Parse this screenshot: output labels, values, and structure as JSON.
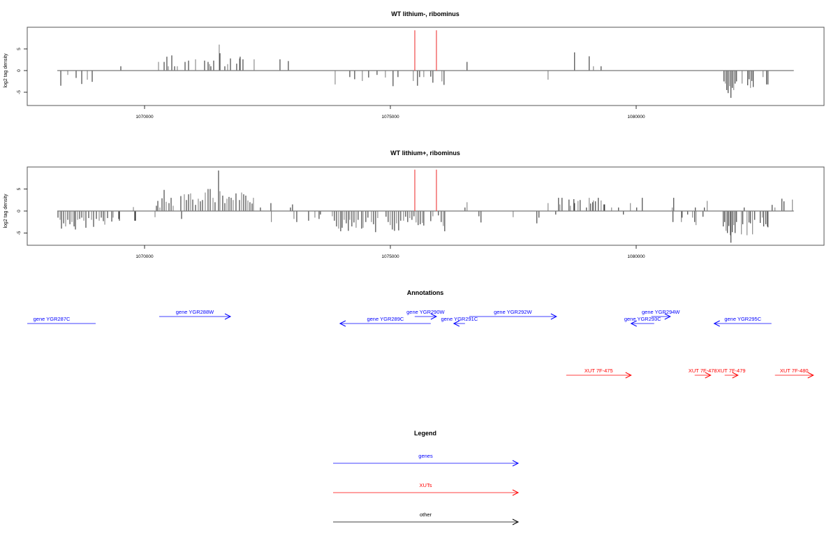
{
  "chart_data": [
    {
      "type": "bar",
      "title": "WT lithium-, ribominus",
      "xlabel": "",
      "ylabel": "log2 tag density",
      "xlim": [
        1067614,
        1083817
      ],
      "ylim": [
        -8,
        10
      ],
      "xticks": [
        1070000,
        1075000,
        1080000
      ],
      "xtick_labels": [
        "1070000",
        "1075000",
        "1080000"
      ],
      "yticks": [
        -5,
        0,
        5
      ],
      "ytick_labels": [
        "-5",
        "0",
        "5"
      ],
      "baseline": [
        1068225,
        1083206
      ],
      "highlight_lines": {
        "color": "#f04848",
        "x": [
          1075497,
          1075937
        ],
        "value": 9.3
      },
      "bars": [
        [
          1068296,
          -3.5
        ],
        [
          1068438,
          -1
        ],
        [
          1068608,
          -1.7
        ],
        [
          1068722,
          -3.1
        ],
        [
          1068836,
          -2.1
        ],
        [
          1068935,
          -2.6
        ],
        [
          1069517,
          1
        ],
        [
          1070284,
          2
        ],
        [
          1070398,
          2
        ],
        [
          1070454,
          3.2
        ],
        [
          1070483,
          1
        ],
        [
          1070554,
          3.5
        ],
        [
          1070611,
          1
        ],
        [
          1070667,
          1
        ],
        [
          1070824,
          2
        ],
        [
          1070895,
          2.3
        ],
        [
          1071037,
          2.6
        ],
        [
          1071221,
          2.3
        ],
        [
          1071292,
          2
        ],
        [
          1071321,
          1.5
        ],
        [
          1071349,
          1
        ],
        [
          1071406,
          2.3
        ],
        [
          1071519,
          6
        ],
        [
          1071534,
          4
        ],
        [
          1071633,
          1
        ],
        [
          1071690,
          1.5
        ],
        [
          1071747,
          2.8
        ],
        [
          1071874,
          1.6
        ],
        [
          1071931,
          2.8
        ],
        [
          1071945,
          3.2
        ],
        [
          1072002,
          2.6
        ],
        [
          1072229,
          2.6
        ],
        [
          1072755,
          2.6
        ],
        [
          1072925,
          2.2
        ],
        [
          1073877,
          -3.2
        ],
        [
          1074175,
          -1.5
        ],
        [
          1074274,
          -2
        ],
        [
          1074430,
          -2.4
        ],
        [
          1074558,
          -1.6
        ],
        [
          1074729,
          -1
        ],
        [
          1074899,
          -1.6
        ],
        [
          1075055,
          -3.6
        ],
        [
          1075155,
          -1.5
        ],
        [
          1075467,
          -2.4
        ],
        [
          1075552,
          -3.5
        ],
        [
          1075595,
          -1.5
        ],
        [
          1075680,
          -1.5
        ],
        [
          1075822,
          -1.4
        ],
        [
          1075865,
          -2.8
        ],
        [
          1076049,
          -2.5
        ],
        [
          1076092,
          -3.3
        ],
        [
          1076560,
          2
        ],
        [
          1078208,
          -2.1
        ],
        [
          1078747,
          4.2
        ],
        [
          1079045,
          3.3
        ],
        [
          1079131,
          1
        ],
        [
          1079287,
          1
        ],
        [
          1081786,
          -2.5
        ],
        [
          1081814,
          -3
        ],
        [
          1081843,
          -4.5
        ],
        [
          1081871,
          -5.2
        ],
        [
          1081900,
          -3.6
        ],
        [
          1081928,
          -6.3
        ],
        [
          1081956,
          -4
        ],
        [
          1081985,
          -4.5
        ],
        [
          1082013,
          -3
        ],
        [
          1082042,
          -2.5
        ],
        [
          1082155,
          -3
        ],
        [
          1082269,
          -3.4
        ],
        [
          1082297,
          -2
        ],
        [
          1082326,
          -4
        ],
        [
          1082354,
          -2.4
        ],
        [
          1082382,
          -3.8
        ],
        [
          1082581,
          -1.5
        ],
        [
          1082652,
          -3.2
        ],
        [
          1082681,
          -3.2
        ]
      ]
    },
    {
      "type": "bar",
      "title": "WT lithium+, ribominus",
      "xlabel": "",
      "ylabel": "log2 tag density",
      "xlim": [
        1067614,
        1083817
      ],
      "ylim": [
        -8,
        10
      ],
      "xticks": [
        1070000,
        1075000,
        1080000
      ],
      "xtick_labels": [
        "1070000",
        "1075000",
        "1080000"
      ],
      "yticks": [
        -5,
        0,
        5
      ],
      "ytick_labels": [
        "-5",
        "0",
        "5"
      ],
      "baseline": [
        1068225,
        1083206
      ],
      "highlight_lines": {
        "color": "#f04848",
        "x": [
          1075497,
          1075937
        ],
        "value": 9.4
      },
      "bars": [
        [
          1068239,
          -1.5
        ],
        [
          1068282,
          -2
        ],
        [
          1068310,
          -4
        ],
        [
          1068353,
          -2.8
        ],
        [
          1068395,
          -3.5
        ],
        [
          1068438,
          -2
        ],
        [
          1068481,
          -3
        ],
        [
          1068523,
          -2.5
        ],
        [
          1068566,
          -3.5
        ],
        [
          1068594,
          -4.2
        ],
        [
          1068637,
          -2
        ],
        [
          1068679,
          -1.8
        ],
        [
          1068722,
          -1.5
        ],
        [
          1068765,
          -2.2
        ],
        [
          1068807,
          -3.8
        ],
        [
          1068864,
          -1.6
        ],
        [
          1068921,
          -2
        ],
        [
          1068963,
          -3.6
        ],
        [
          1069020,
          -1.8
        ],
        [
          1069077,
          -2.2
        ],
        [
          1069120,
          -1.5
        ],
        [
          1069162,
          -2.3
        ],
        [
          1069191,
          -3.1
        ],
        [
          1069247,
          -1.6
        ],
        [
          1069333,
          -2.4
        ],
        [
          1069361,
          -1.5
        ],
        [
          1069475,
          -1.8
        ],
        [
          1069489,
          -2.2
        ],
        [
          1069773,
          0.9
        ],
        [
          1069801,
          -2.2
        ],
        [
          1069815,
          -2.2
        ],
        [
          1070213,
          -1.4
        ],
        [
          1070241,
          1.2
        ],
        [
          1070270,
          2.3
        ],
        [
          1070312,
          0.8
        ],
        [
          1070355,
          2.9
        ],
        [
          1070398,
          4.8
        ],
        [
          1070440,
          2.1
        ],
        [
          1070497,
          1.8
        ],
        [
          1070540,
          3
        ],
        [
          1070582,
          1.2
        ],
        [
          1070738,
          3.4
        ],
        [
          1070753,
          -1.8
        ],
        [
          1070809,
          3.8
        ],
        [
          1070852,
          2.5
        ],
        [
          1070895,
          3.8
        ],
        [
          1070937,
          4
        ],
        [
          1070980,
          2.6
        ],
        [
          1071037,
          1.4
        ],
        [
          1071093,
          2.8
        ],
        [
          1071136,
          2.2
        ],
        [
          1071179,
          2.5
        ],
        [
          1071235,
          4.2
        ],
        [
          1071292,
          5
        ],
        [
          1071335,
          5
        ],
        [
          1071392,
          3
        ],
        [
          1071434,
          2
        ],
        [
          1071505,
          9.2
        ],
        [
          1071534,
          4.5
        ],
        [
          1071590,
          3.5
        ],
        [
          1071633,
          1.8
        ],
        [
          1071676,
          2.8
        ],
        [
          1071718,
          3.2
        ],
        [
          1071761,
          3
        ],
        [
          1071803,
          2.5
        ],
        [
          1071860,
          4
        ],
        [
          1071931,
          2.5
        ],
        [
          1071974,
          4.2
        ],
        [
          1072016,
          3.8
        ],
        [
          1072059,
          3.5
        ],
        [
          1072102,
          2.4
        ],
        [
          1072144,
          2
        ],
        [
          1072187,
          1.7
        ],
        [
          1072215,
          3
        ],
        [
          1072357,
          0.8
        ],
        [
          1072570,
          1.8
        ],
        [
          1072580,
          -2.5
        ],
        [
          1072968,
          0.8
        ],
        [
          1073010,
          1.5
        ],
        [
          1073039,
          -1.8
        ],
        [
          1073096,
          -2.5
        ],
        [
          1073337,
          -2.2
        ],
        [
          1073465,
          -1.5
        ],
        [
          1073550,
          -1.8
        ],
        [
          1073578,
          -0.8
        ],
        [
          1073820,
          -1.2
        ],
        [
          1073862,
          -2.2
        ],
        [
          1073905,
          -3.5
        ],
        [
          1073948,
          -4
        ],
        [
          1073990,
          -4.6
        ],
        [
          1074019,
          -3.8
        ],
        [
          1074061,
          -2
        ],
        [
          1074104,
          -2.8
        ],
        [
          1074146,
          -4.5
        ],
        [
          1074175,
          -2
        ],
        [
          1074217,
          -3.5
        ],
        [
          1074260,
          -2.6
        ],
        [
          1074303,
          -3.8
        ],
        [
          1074345,
          -2
        ],
        [
          1074416,
          -4
        ],
        [
          1074445,
          -3.8
        ],
        [
          1074501,
          -2.5
        ],
        [
          1074544,
          -1.5
        ],
        [
          1074615,
          -2.5
        ],
        [
          1074658,
          -3
        ],
        [
          1074700,
          -4.8
        ],
        [
          1074743,
          -1.6
        ],
        [
          1074913,
          -1.3
        ],
        [
          1074956,
          -2.5
        ],
        [
          1074998,
          -3.2
        ],
        [
          1075041,
          -4.2
        ],
        [
          1075084,
          -4.5
        ],
        [
          1075126,
          -2.8
        ],
        [
          1075169,
          -4.4
        ],
        [
          1075211,
          -2.2
        ],
        [
          1075268,
          -2.2
        ],
        [
          1075311,
          -1.3
        ],
        [
          1075353,
          -2.5
        ],
        [
          1075396,
          -1.6
        ],
        [
          1075439,
          -2
        ],
        [
          1075481,
          -1.2
        ],
        [
          1075524,
          -2.6
        ],
        [
          1075566,
          -3.2
        ],
        [
          1075609,
          -3
        ],
        [
          1075652,
          -2.7
        ],
        [
          1075680,
          -3.3
        ],
        [
          1075822,
          -2.3
        ],
        [
          1075865,
          -1.2
        ],
        [
          1075978,
          -1
        ],
        [
          1076035,
          -2.5
        ],
        [
          1076078,
          -3.4
        ],
        [
          1076106,
          -4.6
        ],
        [
          1076518,
          0.8
        ],
        [
          1076560,
          2
        ],
        [
          1076802,
          -1.2
        ],
        [
          1076844,
          -2.6
        ],
        [
          1077498,
          -1.4
        ],
        [
          1077980,
          -2.8
        ],
        [
          1078023,
          -1.5
        ],
        [
          1078208,
          1.8
        ],
        [
          1078364,
          -0.8
        ],
        [
          1078421,
          3
        ],
        [
          1078449,
          1.5
        ],
        [
          1078492,
          3
        ],
        [
          1078634,
          2.6
        ],
        [
          1078662,
          1.2
        ],
        [
          1078733,
          2.7
        ],
        [
          1078747,
          1.8
        ],
        [
          1078818,
          2.3
        ],
        [
          1078861,
          2.5
        ],
        [
          1078989,
          0.8
        ],
        [
          1079045,
          3
        ],
        [
          1079074,
          1.7
        ],
        [
          1079116,
          2
        ],
        [
          1079131,
          2.4
        ],
        [
          1079173,
          2.2
        ],
        [
          1079230,
          3
        ],
        [
          1079287,
          2.4
        ],
        [
          1079344,
          1.5
        ],
        [
          1079358,
          1.5
        ],
        [
          1079500,
          0.8
        ],
        [
          1079642,
          0.8
        ],
        [
          1079741,
          -0.8
        ],
        [
          1079883,
          1.8
        ],
        [
          1080011,
          0.8
        ],
        [
          1080125,
          3
        ],
        [
          1080735,
          0.8
        ],
        [
          1080749,
          -2.5
        ],
        [
          1080764,
          3
        ],
        [
          1080920,
          -2.5
        ],
        [
          1080934,
          -1.5
        ],
        [
          1081048,
          -0.8
        ],
        [
          1081147,
          -1.5
        ],
        [
          1081190,
          -2.5
        ],
        [
          1081204,
          0.8
        ],
        [
          1081218,
          -3.2
        ],
        [
          1081360,
          -1.3
        ],
        [
          1081388,
          0.8
        ],
        [
          1081445,
          2.3
        ],
        [
          1081772,
          -3.5
        ],
        [
          1081800,
          -2.5
        ],
        [
          1081829,
          -4.5
        ],
        [
          1081857,
          -5
        ],
        [
          1081885,
          -3.4
        ],
        [
          1081914,
          -5.5
        ],
        [
          1081928,
          -7.2
        ],
        [
          1081956,
          -4.8
        ],
        [
          1081985,
          -3.2
        ],
        [
          1082013,
          -5
        ],
        [
          1082042,
          -2.5
        ],
        [
          1082141,
          -5.3
        ],
        [
          1082169,
          -3
        ],
        [
          1082198,
          0.8
        ],
        [
          1082255,
          -5.5
        ],
        [
          1082297,
          -2.6
        ],
        [
          1082326,
          -2.8
        ],
        [
          1082368,
          -5.3
        ],
        [
          1082411,
          -2
        ],
        [
          1082524,
          -2.7
        ],
        [
          1082567,
          -1.5
        ],
        [
          1082595,
          -3.5
        ],
        [
          1082638,
          -3
        ],
        [
          1082666,
          -3.5
        ],
        [
          1082681,
          -3.7
        ],
        [
          1082766,
          1.4
        ],
        [
          1082823,
          0.8
        ],
        [
          1082965,
          2.8
        ],
        [
          1083007,
          2.2
        ],
        [
          1083178,
          2.6
        ]
      ]
    }
  ],
  "annotations": {
    "title": "Annotations",
    "colors": {
      "genes": "#0000ff",
      "xuts": "#ff0000",
      "other": "#000000"
    },
    "genes": [
      {
        "label": "gene YGR287C",
        "start": 1067614,
        "end": 1069006,
        "strand": "-",
        "row": 2,
        "arrowhead": false
      },
      {
        "label": "gene YGR288W",
        "start": 1070298,
        "end": 1071747,
        "strand": "+",
        "row": 1,
        "arrowhead": true
      },
      {
        "label": "gene YGR289C",
        "start": 1073976,
        "end": 1075822,
        "strand": "-",
        "row": 2,
        "arrowhead": true
      },
      {
        "label": "gene YGR290W",
        "start": 1075495,
        "end": 1075936,
        "strand": "+",
        "row": 1,
        "arrowhead": true
      },
      {
        "label": "gene YGR291C",
        "start": 1076291,
        "end": 1076518,
        "strand": "-",
        "row": 2,
        "arrowhead": true
      },
      {
        "label": "gene YGR292W",
        "start": 1076603,
        "end": 1078378,
        "strand": "+",
        "row": 1,
        "arrowhead": true
      },
      {
        "label": "gene YGR293C",
        "start": 1079897,
        "end": 1080366,
        "strand": "-",
        "row": 2,
        "arrowhead": true
      },
      {
        "label": "gene YGR294W",
        "start": 1080309,
        "end": 1080693,
        "strand": "+",
        "row": 1,
        "arrowhead": true
      },
      {
        "label": "gene YGR295C",
        "start": 1081587,
        "end": 1082752,
        "strand": "-",
        "row": 2,
        "arrowhead": true
      }
    ],
    "xuts": [
      {
        "label": "XUT 7F-475",
        "start": 1078577,
        "end": 1079897,
        "strand": "+"
      },
      {
        "label": "XUT 7F-478",
        "start": 1081190,
        "end": 1081516,
        "strand": "+"
      },
      {
        "label": "XUT 7F-479",
        "start": 1081800,
        "end": 1082070,
        "strand": "+"
      },
      {
        "label": "XUT 7F-480",
        "start": 1082823,
        "end": 1083604,
        "strand": "+"
      }
    ]
  },
  "legend": {
    "title": "Legend",
    "items": [
      {
        "label": "genes",
        "color": "#0000ff"
      },
      {
        "label": "XUTs",
        "color": "#ff0000"
      },
      {
        "label": "other",
        "color": "#000000"
      }
    ]
  }
}
